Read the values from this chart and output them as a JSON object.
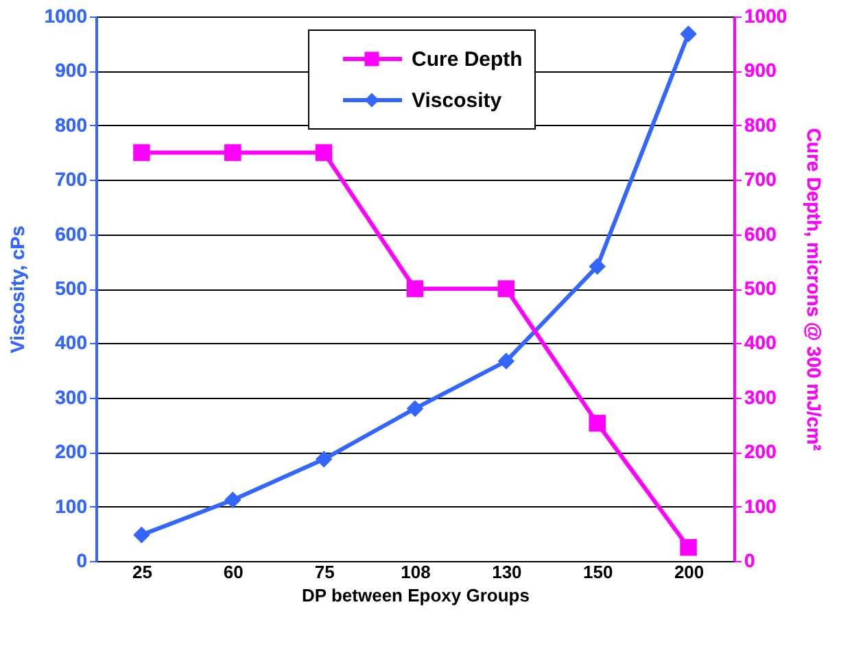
{
  "chart_data": {
    "type": "line",
    "xlabel": "DP between Epoxy Groups",
    "ylabel": "Viscosity, cPs",
    "y2label": "Cure Depth, microns @ 300 mJ/cm²",
    "categories": [
      "25",
      "60",
      "75",
      "108",
      "130",
      "150",
      "200"
    ],
    "series": [
      {
        "name": "Cure Depth",
        "color": "#ff00ff",
        "marker": "square",
        "axis": "y2",
        "values": [
          750,
          750,
          750,
          500,
          500,
          253,
          25
        ]
      },
      {
        "name": "Viscosity",
        "color": "#3366ff",
        "marker": "diamond",
        "values": [
          48,
          112,
          187,
          280,
          367,
          541,
          968
        ]
      }
    ],
    "ylim": [
      0,
      1000
    ],
    "yticks": [
      0,
      100,
      200,
      300,
      400,
      500,
      600,
      700,
      800,
      900,
      1000
    ],
    "y2lim": [
      0,
      1000
    ],
    "y2ticks": [
      0,
      100,
      200,
      300,
      400,
      500,
      600,
      700,
      800,
      900,
      1000
    ],
    "grid": "y",
    "legend": "top",
    "line_style": "solid"
  }
}
